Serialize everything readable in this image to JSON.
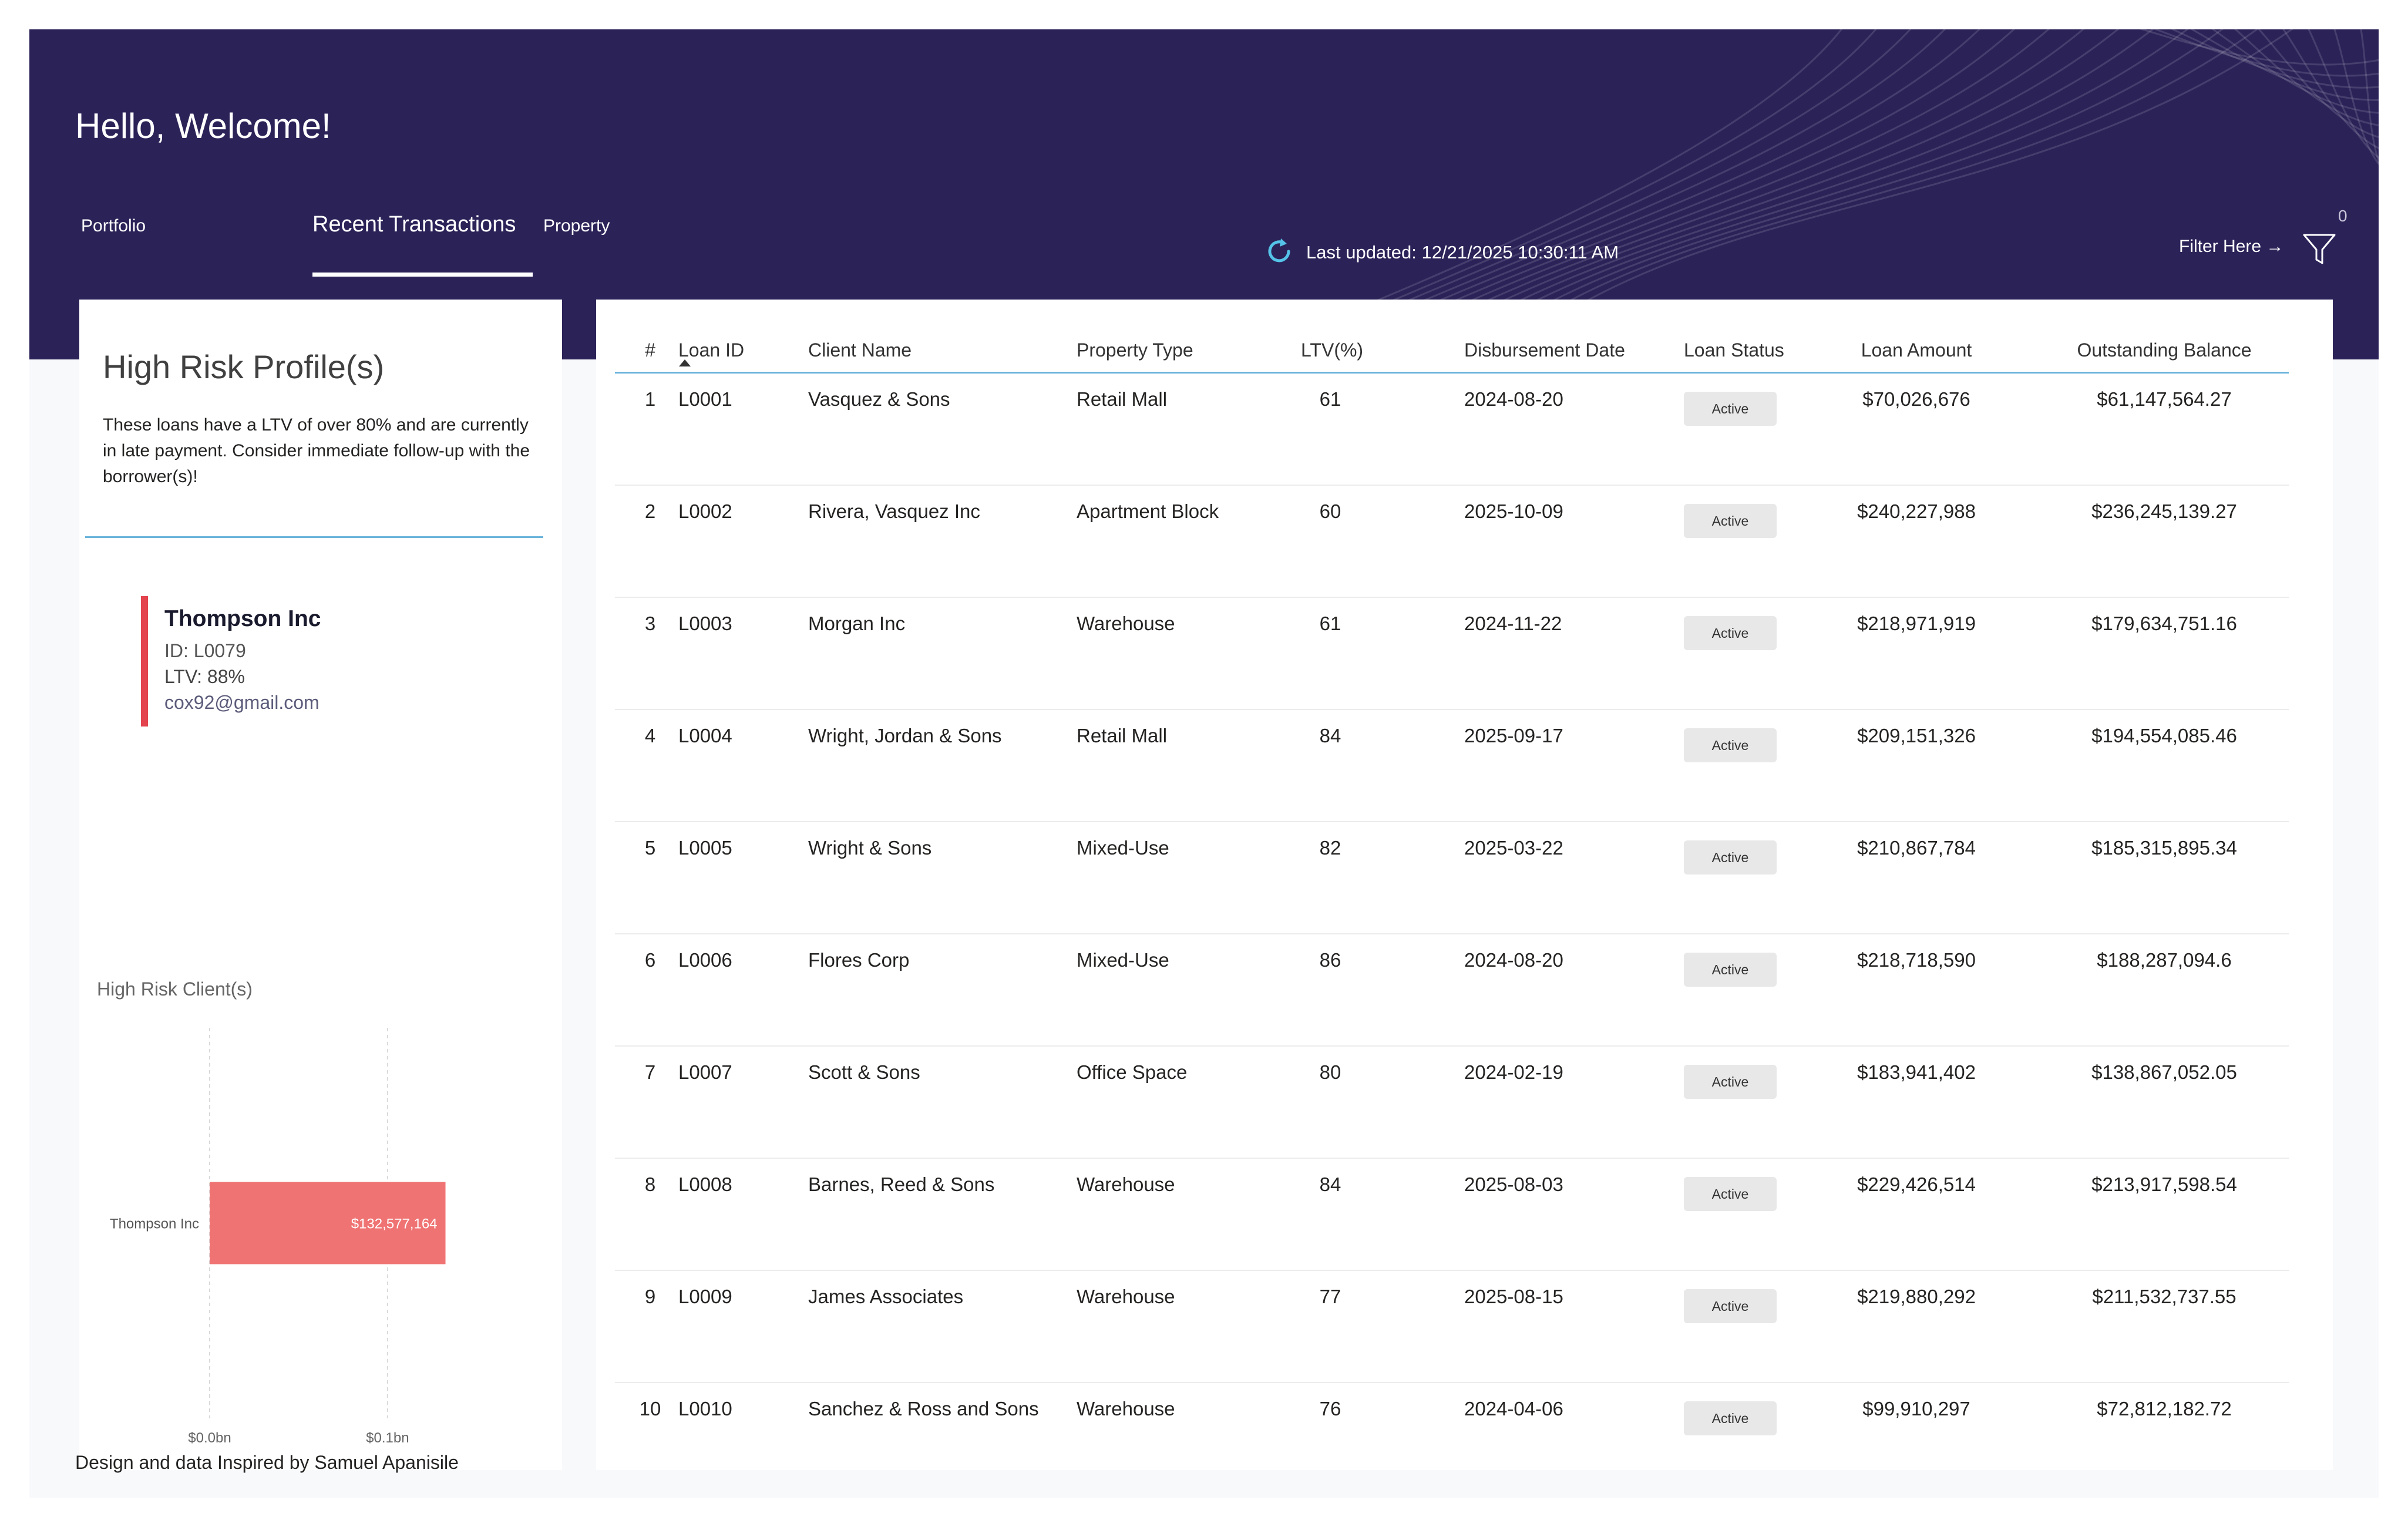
{
  "header": {
    "greeting": "Hello, Welcome!",
    "tabs": [
      {
        "label": "Portfolio"
      },
      {
        "label": "Recent Transactions",
        "active": true
      },
      {
        "label": "Property"
      }
    ],
    "last_updated": "Last updated: 12/21/2025 10:30:11 AM",
    "filter_label": "Filter Here →",
    "filter_count": "0",
    "icons": {
      "refresh": "refresh-icon",
      "filter": "filter-funnel-icon"
    },
    "colors": {
      "banner": "#2b2358"
    }
  },
  "risk_panel": {
    "title": "High Risk Profile(s)",
    "description": "These loans have a LTV of over 80% and are currently in late payment. Consider immediate follow-up with the borrower(s)!",
    "client": {
      "name": "Thompson Inc",
      "id": "ID: L0079",
      "ltv": "LTV: 88%",
      "email": "cox92@gmail.com"
    },
    "colors": {
      "alert": "#e3444e",
      "divider": "#6ab4db"
    }
  },
  "chart_data": {
    "type": "bar",
    "orientation": "horizontal",
    "title": "High Risk Client(s)",
    "categories": [
      "Thompson Inc"
    ],
    "values": [
      132577164
    ],
    "data_labels": [
      "$132,577,164"
    ],
    "x_ticks": [
      "$0.0bn",
      "$0.1bn"
    ],
    "x_tick_values": [
      0,
      100000000
    ],
    "xlim": [
      0,
      175000000
    ],
    "grid": true,
    "color": "#f07373"
  },
  "table": {
    "columns": [
      "#",
      "Loan ID",
      "Client Name",
      "Property Type",
      "LTV(%)",
      "Disbursement Date",
      "Loan Status",
      "Loan Amount",
      "Outstanding Balance"
    ],
    "sorted_column": "Loan ID",
    "rows": [
      {
        "num": "1",
        "id": "L0001",
        "client": "Vasquez & Sons",
        "property": "Retail Mall",
        "ltv": "61",
        "date": "2024-08-20",
        "status": "Active",
        "amount": "$70,026,676",
        "balance": "$61,147,564.27"
      },
      {
        "num": "2",
        "id": "L0002",
        "client": "Rivera, Vasquez Inc",
        "property": "Apartment Block",
        "ltv": "60",
        "date": "2025-10-09",
        "status": "Active",
        "amount": "$240,227,988",
        "balance": "$236,245,139.27"
      },
      {
        "num": "3",
        "id": "L0003",
        "client": "Morgan Inc",
        "property": "Warehouse",
        "ltv": "61",
        "date": "2024-11-22",
        "status": "Active",
        "amount": "$218,971,919",
        "balance": "$179,634,751.16"
      },
      {
        "num": "4",
        "id": "L0004",
        "client": "Wright, Jordan & Sons",
        "property": "Retail Mall",
        "ltv": "84",
        "date": "2025-09-17",
        "status": "Active",
        "amount": "$209,151,326",
        "balance": "$194,554,085.46"
      },
      {
        "num": "5",
        "id": "L0005",
        "client": "Wright & Sons",
        "property": "Mixed-Use",
        "ltv": "82",
        "date": "2025-03-22",
        "status": "Active",
        "amount": "$210,867,784",
        "balance": "$185,315,895.34"
      },
      {
        "num": "6",
        "id": "L0006",
        "client": "Flores Corp",
        "property": "Mixed-Use",
        "ltv": "86",
        "date": "2024-08-20",
        "status": "Active",
        "amount": "$218,718,590",
        "balance": "$188,287,094.6"
      },
      {
        "num": "7",
        "id": "L0007",
        "client": "Scott & Sons",
        "property": "Office Space",
        "ltv": "80",
        "date": "2024-02-19",
        "status": "Active",
        "amount": "$183,941,402",
        "balance": "$138,867,052.05"
      },
      {
        "num": "8",
        "id": "L0008",
        "client": "Barnes, Reed & Sons",
        "property": "Warehouse",
        "ltv": "84",
        "date": "2025-08-03",
        "status": "Active",
        "amount": "$229,426,514",
        "balance": "$213,917,598.54"
      },
      {
        "num": "9",
        "id": "L0009",
        "client": "James Associates",
        "property": "Warehouse",
        "ltv": "77",
        "date": "2025-08-15",
        "status": "Active",
        "amount": "$219,880,292",
        "balance": "$211,532,737.55"
      },
      {
        "num": "10",
        "id": "L0010",
        "client": "Sanchez & Ross and Sons",
        "property": "Warehouse",
        "ltv": "76",
        "date": "2024-04-06",
        "status": "Active",
        "amount": "$99,910,297",
        "balance": "$72,812,182.72"
      }
    ]
  },
  "footer": {
    "credit": "Design and data Inspired by Samuel Apanisile"
  }
}
